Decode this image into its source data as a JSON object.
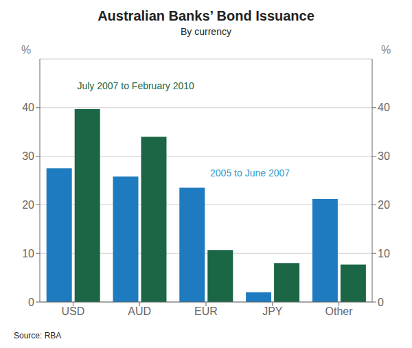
{
  "chart_data": {
    "type": "bar",
    "title": "Australian Banks’ Bond Issuance",
    "subtitle": "By currency",
    "source": "Source: RBA",
    "categories": [
      "USD",
      "AUD",
      "EUR",
      "JPY",
      "Other"
    ],
    "series": [
      {
        "name": "2005 to June 2007",
        "color": "#1f7bbf",
        "values": [
          27.5,
          25.8,
          23.5,
          2.0,
          21.2
        ]
      },
      {
        "name": "July 2007 to February 2010",
        "color": "#1a6645",
        "values": [
          39.7,
          34.0,
          10.7,
          8.0,
          7.7
        ]
      }
    ],
    "ylim": [
      0,
      50
    ],
    "yticks": [
      0,
      10,
      20,
      30,
      40
    ],
    "y2lim": [
      0,
      50
    ],
    "y2ticks": [
      0,
      10,
      20,
      30,
      40
    ],
    "y_label": "%",
    "y2_label": "%",
    "grid": true,
    "annotations": [
      {
        "text": "July 2007 to February 2010",
        "color": "#1a6645",
        "x": 0.45,
        "y": 44.5
      },
      {
        "text": "2005 to June 2007",
        "color": "#3399cc",
        "x": 2.05,
        "y": 26.5
      }
    ]
  }
}
